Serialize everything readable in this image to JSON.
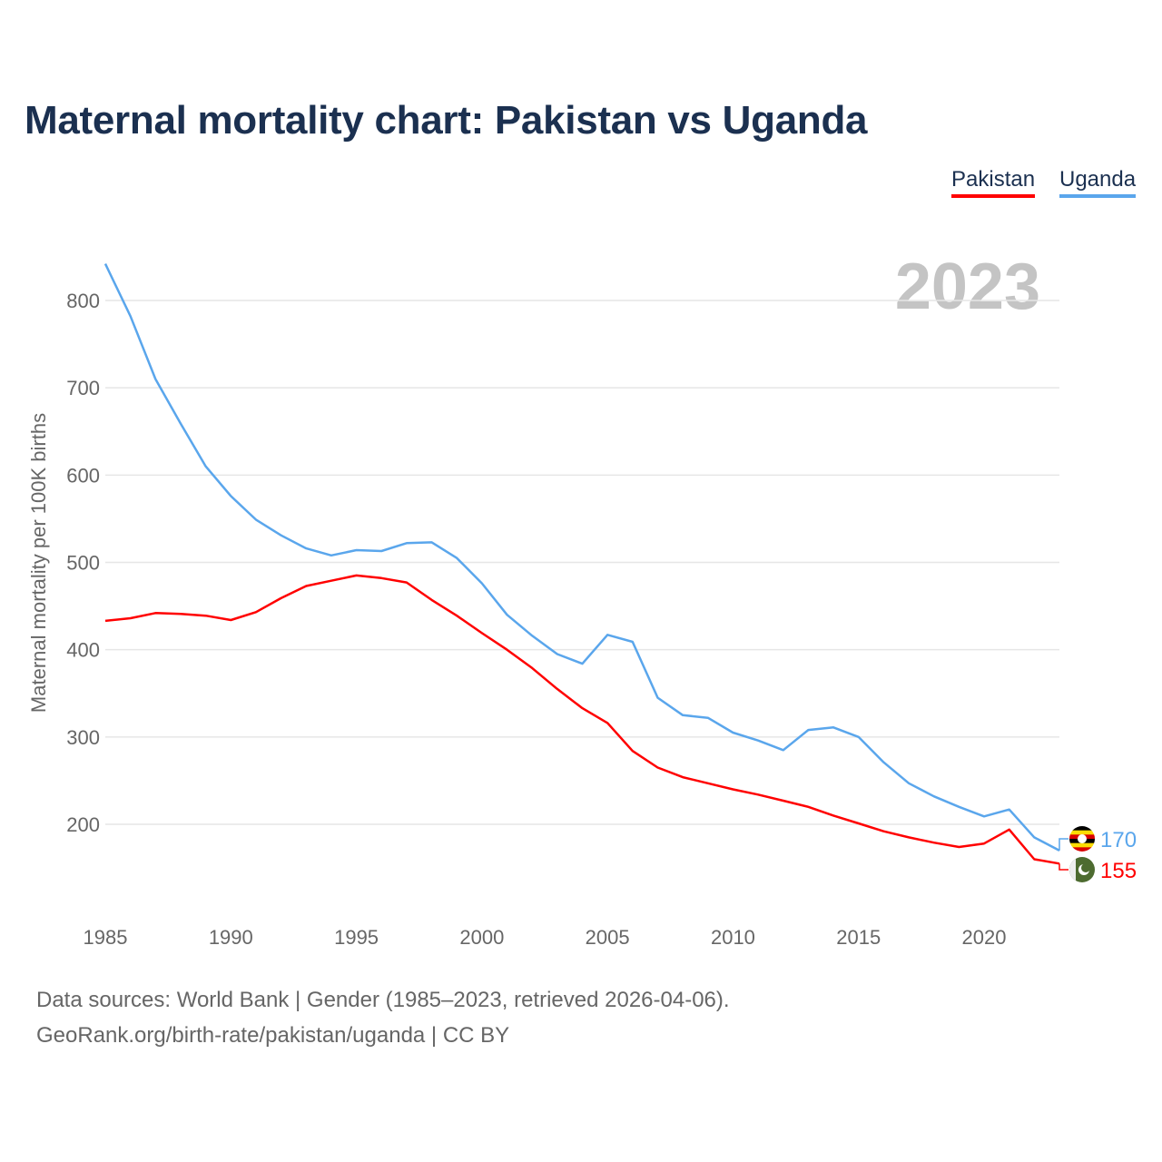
{
  "chart_data": {
    "type": "line",
    "title": "Maternal mortality chart: Pakistan vs Uganda",
    "xlabel": "",
    "ylabel": "Maternal mortality per 100K births",
    "year_watermark": "2023",
    "x": [
      1985,
      1986,
      1987,
      1988,
      1989,
      1990,
      1991,
      1992,
      1993,
      1994,
      1995,
      1996,
      1997,
      1998,
      1999,
      2000,
      2001,
      2002,
      2003,
      2004,
      2005,
      2006,
      2007,
      2008,
      2009,
      2010,
      2011,
      2012,
      2013,
      2014,
      2015,
      2016,
      2017,
      2018,
      2019,
      2020,
      2021,
      2022,
      2023
    ],
    "xlim": [
      1985,
      2023
    ],
    "ylim": [
      100,
      850
    ],
    "x_ticks": [
      "1985",
      "1990",
      "1995",
      "2000",
      "2005",
      "2010",
      "2015",
      "2020"
    ],
    "y_ticks": [
      "200",
      "300",
      "400",
      "500",
      "600",
      "700",
      "800"
    ],
    "grid": true,
    "legend_position": "top-right",
    "series": [
      {
        "name": "Pakistan",
        "color": "#ff0000",
        "end_label": "155",
        "flag": "pakistan-flag",
        "values": [
          433,
          436,
          442,
          441,
          439,
          434,
          443,
          459,
          473,
          479,
          485,
          482,
          477,
          457,
          439,
          419,
          400,
          379,
          355,
          333,
          316,
          284,
          265,
          254,
          247,
          240,
          234,
          227,
          220,
          210,
          201,
          192,
          185,
          179,
          174,
          178,
          194,
          160,
          155
        ]
      },
      {
        "name": "Uganda",
        "color": "#5aa6ec",
        "end_label": "170",
        "flag": "uganda-flag",
        "values": [
          842,
          782,
          710,
          659,
          610,
          576,
          549,
          531,
          516,
          508,
          514,
          513,
          522,
          523,
          505,
          476,
          440,
          416,
          395,
          384,
          417,
          409,
          345,
          325,
          322,
          305,
          296,
          285,
          308,
          311,
          300,
          271,
          247,
          232,
          220,
          209,
          217,
          185,
          170
        ]
      }
    ]
  },
  "footer": {
    "source": "Data sources: World Bank | Gender (1985–2023, retrieved 2026-04-06).",
    "credit": "GeoRank.org/birth-rate/pakistan/uganda | CC BY"
  }
}
